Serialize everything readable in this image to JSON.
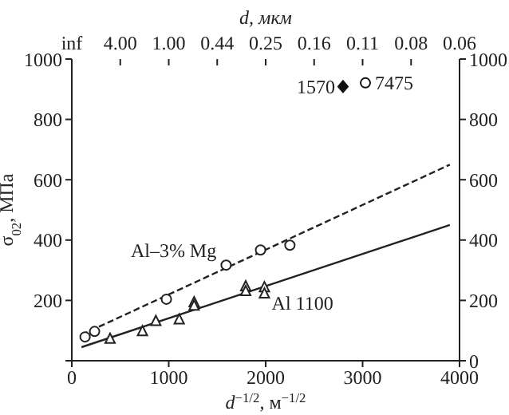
{
  "chart_data": {
    "type": "scatter",
    "xlabel": "d$^{−1/2}$, м$^{−1/2}$",
    "ylabel": "σ$_{02}$, МПа",
    "x2label": "d, мкм",
    "xlim": [
      0,
      4000
    ],
    "xticks": [
      0,
      1000,
      2000,
      3000,
      4000
    ],
    "ylim": [
      0,
      1000
    ],
    "yticks": [
      {
        "value": 0,
        "label": null
      },
      200,
      400,
      600,
      800,
      1000
    ],
    "y2lim": [
      0,
      1000
    ],
    "y2ticks": [
      0,
      200,
      400,
      600,
      800,
      1000
    ],
    "series": [
      {
        "type": "line",
        "name": "Al–3% Mg",
        "color": "#222222",
        "line_style": "dashed",
        "marker": "none",
        "x": [
          100,
          3900
        ],
        "values": [
          86,
          650
        ]
      },
      {
        "type": "line",
        "name": "Al 1100",
        "color": "#222222",
        "line_style": "solid",
        "marker": "none",
        "x": [
          100,
          3900
        ],
        "values": [
          45,
          450
        ]
      },
      {
        "color": "#222222",
        "marker": "circle",
        "x": [
          137,
          235,
          976,
          1592,
          1947,
          2250
        ],
        "values": [
          79,
          97,
          204,
          317,
          367,
          383
        ]
      },
      {
        "color": "#222222",
        "marker": "triangle",
        "x": [
          395,
          729,
          867,
          1108,
          1262,
          1262,
          1794,
          1794,
          1987,
          1987
        ],
        "values": [
          72,
          97,
          131,
          136,
          193,
          182,
          246,
          230,
          243,
          222
        ]
      },
      {
        "color": "#111111",
        "marker": "diamond",
        "x": [
          2798
        ],
        "values": [
          909
        ]
      },
      {
        "color": "#111111",
        "marker": "circle",
        "x": [
          3029
        ],
        "values": [
          921
        ]
      }
    ],
    "annotations": [
      "inf",
      "4.00",
      "1.00",
      "0.44",
      "0.25",
      "0.16",
      "0.11",
      "0.08",
      "0.06",
      {
        "text": "1570",
        "x": 2798,
        "y": 909
      },
      {
        "text": "7475",
        "x": 3029,
        "y": 921
      }
    ]
  }
}
